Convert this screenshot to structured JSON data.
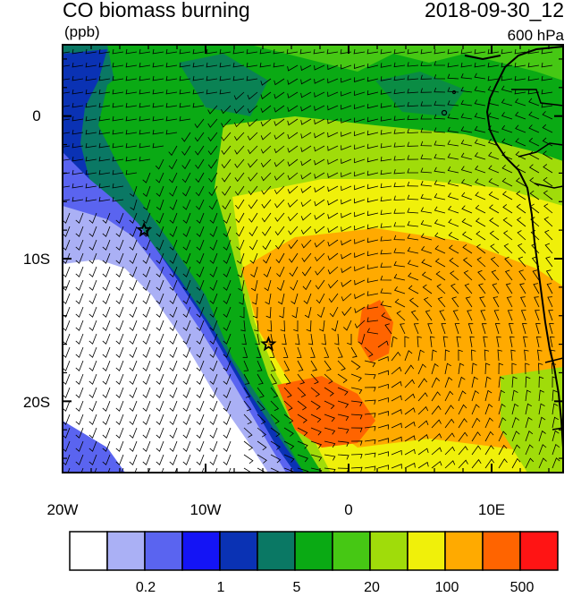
{
  "header": {
    "title": "CO biomass burning",
    "units": "(ppb)",
    "datetime": "2018-09-30_12",
    "level": "600 hPa"
  },
  "map": {
    "lat_labels": [
      "0",
      "10S",
      "20S"
    ],
    "lon_labels": [
      "20W",
      "10W",
      "0",
      "10E"
    ],
    "lon_range": [
      -20,
      15
    ],
    "lat_range": [
      -25,
      5
    ],
    "markers": [
      {
        "name": "star",
        "lon": -14.3,
        "lat": -8
      },
      {
        "name": "star",
        "lon": -5.6,
        "lat": -16
      }
    ]
  },
  "colorbar": {
    "colors": [
      "#ffffff",
      "#aab0f5",
      "#5a64f0",
      "#1414f5",
      "#0a32b4",
      "#0a7864",
      "#0aaa14",
      "#46c814",
      "#a0dc0a",
      "#f0f00a",
      "#ffaa00",
      "#ff6400",
      "#ff1414"
    ],
    "labels": [
      "0.2",
      "1",
      "5",
      "20",
      "100",
      "500"
    ]
  }
}
